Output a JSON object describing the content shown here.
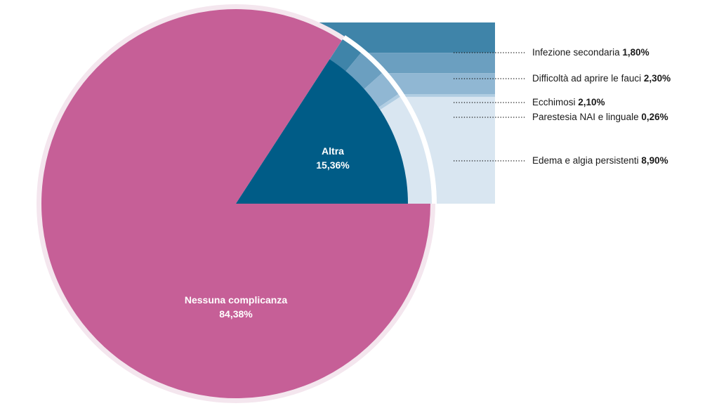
{
  "chart_data": {
    "type": "pie",
    "title": "",
    "slices": [
      {
        "label": "Nessuna complicanza",
        "value_label": "84,38%",
        "value": 84.38,
        "color": "#c65f97"
      },
      {
        "label": "Altra",
        "value_label": "15,36%",
        "value": 15.36,
        "color": "#005c87"
      }
    ],
    "breakdown_of": "Altra",
    "breakdown": [
      {
        "label": "Infezione secondaria",
        "value_label": "1,80%",
        "value": 1.8,
        "color": "#3f84a9"
      },
      {
        "label": "Difficoltà ad aprire le fauci",
        "value_label": "2,30%",
        "value": 2.3,
        "color": "#6b9fc0"
      },
      {
        "label": "Ecchimosi",
        "value_label": "2,10%",
        "value": 2.1,
        "color": "#90b7d3"
      },
      {
        "label": "Parestesia NAI e linguale",
        "value_label": "0,26%",
        "value": 0.26,
        "color": "#b0cde2"
      },
      {
        "label": "Edema e algia persistenti",
        "value_label": "8,90%",
        "value": 8.9,
        "color": "#d9e6f1"
      }
    ],
    "colors": {
      "ring": "#f4e6ee",
      "band": "#dde9f3"
    }
  }
}
